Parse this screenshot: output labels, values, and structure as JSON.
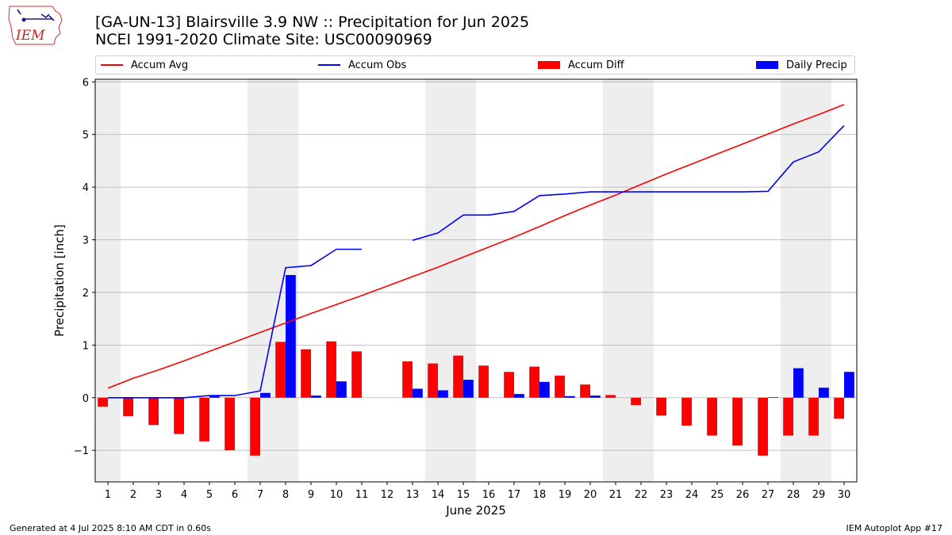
{
  "header": {
    "logo_text": "IEM",
    "title_line1": "[GA-UN-13] Blairsville 3.9 NW :: Precipitation for Jun 2025",
    "title_line2": "NCEI 1991-2020 Climate Site: USC00090969"
  },
  "footer": {
    "generated": "Generated at 4 Jul 2025 8:10 AM CDT in 0.60s",
    "app": "IEM Autoplot App #17"
  },
  "colors": {
    "accum_avg": "#ff0000",
    "accum_obs": "#0000ff",
    "accum_diff": "#ff0000",
    "daily_precip": "#0000ff",
    "weekend_band": "#eeeeee",
    "grid": "#b0b0b0"
  },
  "chart_data": {
    "type": "bar",
    "xlabel": "June 2025",
    "ylabel": "Precipitation [inch]",
    "ylim": [
      -1.6,
      6.05
    ],
    "yticks": [
      -1,
      0,
      1,
      2,
      3,
      4,
      5,
      6
    ],
    "ytick_labels": [
      "−1",
      "0",
      "1",
      "2",
      "3",
      "4",
      "5",
      "6"
    ],
    "grid": "horizontal",
    "legend_position": "top",
    "x": [
      1,
      2,
      3,
      4,
      5,
      6,
      7,
      8,
      9,
      10,
      11,
      12,
      13,
      14,
      15,
      16,
      17,
      18,
      19,
      20,
      21,
      22,
      23,
      24,
      25,
      26,
      27,
      28,
      29,
      30
    ],
    "weekend_days": [
      1,
      7,
      8,
      14,
      15,
      21,
      22,
      28,
      29
    ],
    "series": [
      {
        "name": "Accum Avg",
        "kind": "line",
        "values": [
          0.18,
          0.37,
          0.53,
          0.7,
          0.88,
          1.06,
          1.24,
          1.42,
          1.6,
          1.77,
          1.94,
          2.12,
          2.3,
          2.48,
          2.67,
          2.86,
          3.05,
          3.25,
          3.46,
          3.66,
          3.85,
          4.05,
          4.25,
          4.44,
          4.63,
          4.82,
          5.01,
          5.2,
          5.38,
          5.57
        ]
      },
      {
        "name": "Accum Obs",
        "kind": "line",
        "values": [
          0.0,
          0.0,
          0.0,
          0.0,
          0.04,
          0.04,
          0.13,
          2.47,
          2.51,
          2.82,
          2.82,
          null,
          2.99,
          3.13,
          3.47,
          3.47,
          3.54,
          3.84,
          3.87,
          3.91,
          3.91,
          3.91,
          3.91,
          3.91,
          3.91,
          3.91,
          3.92,
          4.48,
          4.67,
          5.17
        ]
      },
      {
        "name": "Accum Diff",
        "kind": "bar",
        "values": [
          -0.17,
          -0.35,
          -0.52,
          -0.69,
          -0.83,
          -1.0,
          -1.1,
          1.06,
          0.92,
          1.07,
          0.88,
          null,
          0.69,
          0.65,
          0.8,
          0.61,
          0.49,
          0.59,
          0.42,
          0.25,
          0.05,
          -0.14,
          -0.34,
          -0.53,
          -0.72,
          -0.91,
          -1.1,
          -0.72,
          -0.72,
          -0.4
        ]
      },
      {
        "name": "Daily Precip",
        "kind": "bar",
        "values": [
          0.0,
          0.0,
          0.0,
          0.0,
          0.04,
          0.0,
          0.09,
          2.33,
          0.04,
          0.31,
          0.0,
          null,
          0.17,
          0.14,
          0.34,
          0.0,
          0.07,
          0.3,
          0.03,
          0.04,
          0.0,
          0.0,
          0.0,
          0.0,
          0.0,
          0.0,
          0.01,
          0.56,
          0.19,
          0.49
        ]
      }
    ]
  }
}
